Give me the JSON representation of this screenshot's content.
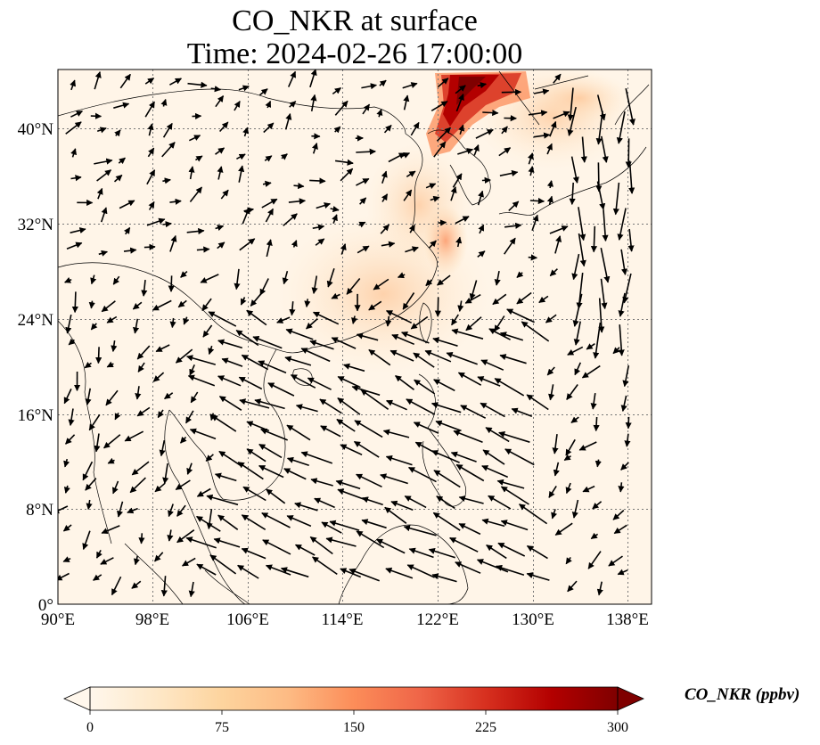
{
  "title": {
    "line1": "CO_NKR at surface",
    "line2": "Time: 2024-02-26 17:00:00"
  },
  "map": {
    "lon_ticks": [
      "90°E",
      "98°E",
      "106°E",
      "114°E",
      "122°E",
      "130°E",
      "138°E"
    ],
    "lat_ticks": [
      "40°N",
      "32°N",
      "24°N",
      "16°N",
      "8°N",
      "0°"
    ],
    "lon_values": [
      90,
      98,
      106,
      114,
      122,
      130,
      138
    ],
    "lat_values": [
      40,
      32,
      24,
      16,
      8,
      0
    ],
    "extent": {
      "lon_min": 90,
      "lon_max": 140,
      "lat_min": 0,
      "lat_max": 45
    },
    "gridlines": true
  },
  "colorbar": {
    "label": "CO_NKR (ppbv)",
    "ticks": [
      "0",
      "75",
      "150",
      "225",
      "300"
    ],
    "tick_values": [
      0,
      75,
      150,
      225,
      300
    ],
    "range": [
      0,
      300
    ],
    "extend": "both",
    "colormap": "OrRd",
    "colors": [
      "#fff7ec",
      "#fee8c8",
      "#fdd49e",
      "#fdbb84",
      "#fc8d59",
      "#ef6548",
      "#d7301f",
      "#b30000",
      "#7f0000"
    ]
  }
}
